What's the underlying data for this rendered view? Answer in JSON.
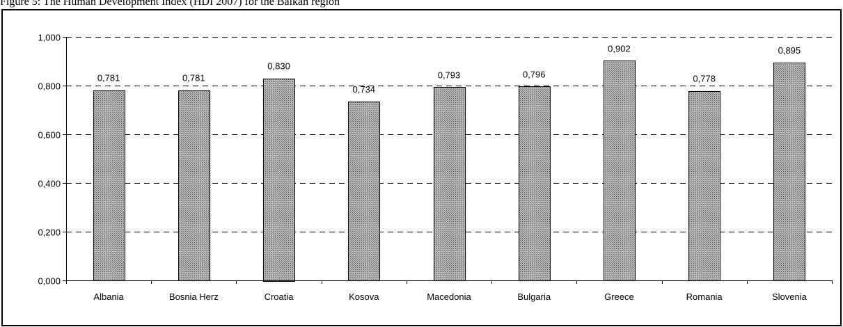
{
  "caption": "Figure 5: The Human Development Index (HDI 2007) for the Balkan region",
  "chart_data": {
    "type": "bar",
    "categories": [
      "Albania",
      "Bosnia Herz",
      "Croatia",
      "Kosova",
      "Macedonia",
      "Bulgaria",
      "Greece",
      "Romania",
      "Slovenia"
    ],
    "values": [
      0.781,
      0.781,
      0.83,
      0.734,
      0.793,
      0.796,
      0.902,
      0.778,
      0.895
    ],
    "value_labels": [
      "0,781",
      "0,781",
      "0,830",
      "0,734",
      "0,793",
      "0,796",
      "0,902",
      "0,778",
      "0,895"
    ],
    "ylim": [
      0,
      1
    ],
    "yticks": [
      0,
      0.2,
      0.4,
      0.6,
      0.8,
      1.0
    ],
    "ytick_labels": [
      "0,000",
      "0,200",
      "0,400",
      "0,600",
      "0,800",
      "1,000"
    ],
    "grid": "dashed horizontal",
    "bar_fill": "#8c8c8c",
    "bar_stroke": "#000000"
  }
}
